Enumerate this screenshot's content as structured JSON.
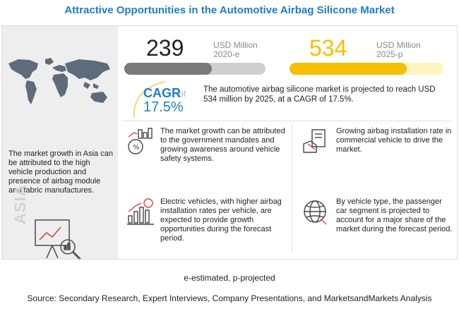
{
  "title": "Attractive Opportunities in the Automotive Airbag Silicone Market",
  "left_panel": {
    "text": "The market growth in Asia can be attributed to the high vehicle production and presence of airbag module and fabric manufactures.",
    "region_tag": "ASIA",
    "icons": [
      "world-map-icon",
      "analysis-chart-icon"
    ]
  },
  "metrics": {
    "value_2020": "239",
    "unit_2020": "USD Million",
    "year_2020": "2020-e",
    "value_2025": "534",
    "unit_2025": "USD Million",
    "year_2025": "2025-p",
    "bar_fill_2020": 0.62,
    "bar_fill_2025": 0.76,
    "colors": {
      "base_year": "#7a7a7a",
      "forecast_year": "#f5c000",
      "accent": "#1f7dc4"
    }
  },
  "cagr": {
    "label": "CAGR",
    "of": "of",
    "value": "17.5%",
    "description": "The automotive airbag silicone market is projected to reach USD 534 million by 2025, at a CAGR of 17.5%."
  },
  "insights": [
    {
      "icon": "government-growth-icon",
      "text": "The market growth can be attributed to the government mandates and growing awareness around vehicle safety systems."
    },
    {
      "icon": "commercial-vehicle-icon",
      "text": "Growing airbag installation rate in commercial vehicle to drive the market."
    },
    {
      "icon": "electric-growth-icon",
      "text": "Electric vehicles, with higher airbag installation rates per vehicle, are expected to provide growth opportunities during the forecast period."
    },
    {
      "icon": "globe-icon",
      "text": "By vehicle type, the passenger car segment is projected to account for a major share of the market during the forecast period."
    }
  ],
  "footnote": "e-estimated, p-projected",
  "source": "Source: Secondary Research, Expert Interviews, Company Presentations, and MarketsandMarkets Analysis"
}
